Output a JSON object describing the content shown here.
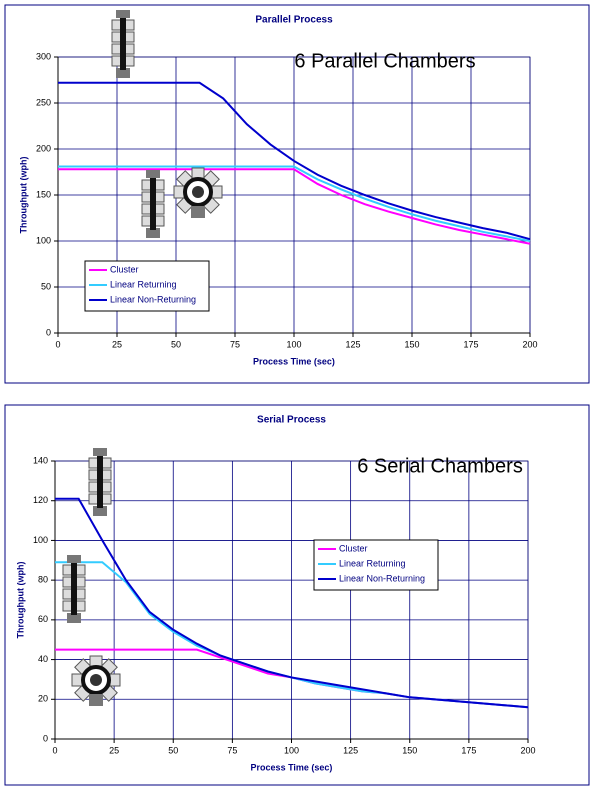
{
  "chart_data": [
    {
      "type": "line",
      "title": "Parallel Process",
      "annotation": "6 Parallel Chambers",
      "x_label": "Process Time (sec)",
      "y_label": "Throughput (wph)",
      "x": [
        0,
        10,
        20,
        30,
        40,
        50,
        60,
        70,
        80,
        90,
        100,
        110,
        120,
        130,
        140,
        150,
        160,
        170,
        180,
        190,
        200
      ],
      "series": [
        {
          "name": "Cluster",
          "color": "#ff00ff",
          "values": [
            178,
            178,
            178,
            178,
            178,
            178,
            178,
            178,
            178,
            178,
            178,
            162,
            150,
            140,
            132,
            125,
            118,
            112,
            107,
            102,
            97
          ]
        },
        {
          "name": "Linear Returning",
          "color": "#33ccff",
          "values": [
            181,
            181,
            181,
            181,
            181,
            181,
            181,
            181,
            181,
            181,
            181,
            167,
            156,
            146,
            137,
            129,
            122,
            116,
            110,
            105,
            100
          ]
        },
        {
          "name": "Linear Non-Returning",
          "color": "#0000cc",
          "values": [
            272,
            272,
            272,
            272,
            272,
            272,
            272,
            255,
            227,
            205,
            187,
            172,
            160,
            150,
            141,
            133,
            126,
            120,
            114,
            109,
            102
          ]
        }
      ],
      "xlim": [
        0,
        200
      ],
      "xticks": [
        0,
        25,
        50,
        75,
        100,
        125,
        150,
        175,
        200
      ],
      "ylim": [
        0,
        300
      ],
      "yticks": [
        0,
        50,
        100,
        150,
        200,
        250,
        300
      ],
      "grid": true,
      "legend_position": "lower left"
    },
    {
      "type": "line",
      "title": "Serial Process",
      "annotation": "6 Serial Chambers",
      "x_label": "Process Time (sec)",
      "y_label": "Throughput (wph)",
      "x": [
        0,
        10,
        20,
        30,
        40,
        50,
        60,
        70,
        80,
        90,
        100,
        110,
        120,
        130,
        140,
        150,
        160,
        170,
        180,
        190,
        200
      ],
      "series": [
        {
          "name": "Cluster",
          "color": "#ff00ff",
          "values": [
            45,
            45,
            45,
            45,
            45,
            45,
            45,
            41,
            37,
            33,
            31,
            28,
            26,
            24,
            23,
            21,
            20,
            19,
            18,
            17,
            16
          ]
        },
        {
          "name": "Linear Returning",
          "color": "#33ccff",
          "values": [
            89,
            89,
            89,
            79,
            63,
            54,
            47,
            42,
            38,
            34,
            31,
            28,
            26,
            24,
            23,
            21,
            20,
            19,
            18,
            17,
            16
          ]
        },
        {
          "name": "Linear Non-Returning",
          "color": "#0000cc",
          "values": [
            121,
            121,
            100,
            80,
            64,
            55,
            48,
            42,
            38,
            34,
            31,
            29,
            27,
            25,
            23,
            21,
            20,
            19,
            18,
            17,
            16
          ]
        }
      ],
      "xlim": [
        0,
        200
      ],
      "xticks": [
        0,
        25,
        50,
        75,
        100,
        125,
        150,
        175,
        200
      ],
      "ylim": [
        0,
        140
      ],
      "yticks": [
        0,
        20,
        40,
        60,
        80,
        100,
        120,
        140
      ],
      "grid": true,
      "legend_position": "center right"
    }
  ]
}
